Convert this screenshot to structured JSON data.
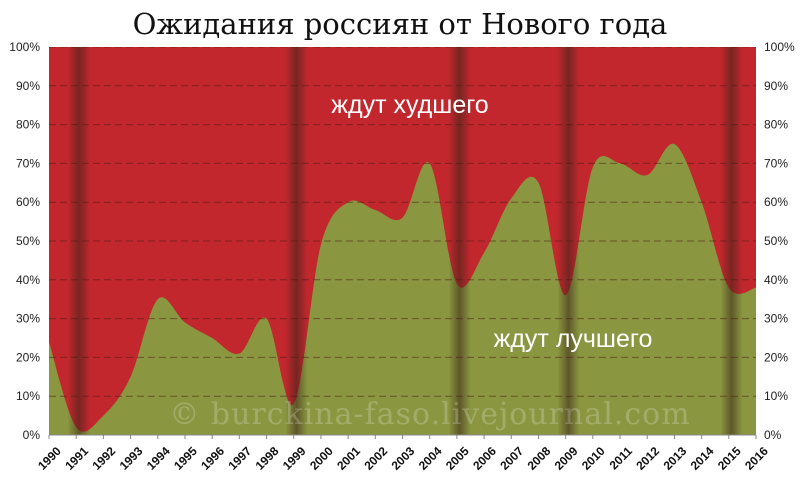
{
  "chart_data": {
    "type": "area",
    "title": "Ожидания россиян от Нового года",
    "x": [
      1990,
      1991,
      1992,
      1993,
      1994,
      1995,
      1996,
      1997,
      1998,
      1999,
      2000,
      2001,
      2002,
      2003,
      2004,
      2005,
      2006,
      2007,
      2008,
      2009,
      2010,
      2011,
      2012,
      2013,
      2014,
      2015,
      2016
    ],
    "series": [
      {
        "name": "ждут лучшего",
        "values": [
          24,
          2,
          5,
          15,
          35,
          29,
          25,
          21,
          30,
          8,
          49,
          60,
          58,
          56,
          70,
          39,
          47,
          61,
          65,
          36,
          69,
          70,
          67,
          75,
          60,
          38,
          38
        ]
      },
      {
        "name": "ждут худшего",
        "values": [
          76,
          98,
          95,
          85,
          65,
          71,
          75,
          79,
          70,
          92,
          51,
          40,
          42,
          44,
          30,
          61,
          53,
          39,
          35,
          64,
          31,
          30,
          33,
          25,
          40,
          62,
          62
        ]
      }
    ],
    "ylim": [
      0,
      100
    ],
    "yticks": [
      "0%",
      "10%",
      "20%",
      "30%",
      "40%",
      "50%",
      "60%",
      "70%",
      "80%",
      "90%",
      "100%"
    ],
    "xticks": [
      "1990",
      "1991",
      "1992",
      "1993",
      "1994",
      "1995",
      "1996",
      "1997",
      "1998",
      "1999",
      "2000",
      "2001",
      "2002",
      "2003",
      "2004",
      "2005",
      "2006",
      "2007",
      "2008",
      "2009",
      "2010",
      "2011",
      "2012",
      "2013",
      "2014",
      "2015",
      "2016"
    ],
    "crisis_years": [
      1991,
      1999,
      2005,
      2009,
      2015
    ],
    "grid": true,
    "colors": {
      "worse": "#c1272d",
      "better": "#8a9640",
      "band": "#3a2418"
    }
  },
  "watermark": "© burckina-faso.livejournal.com"
}
